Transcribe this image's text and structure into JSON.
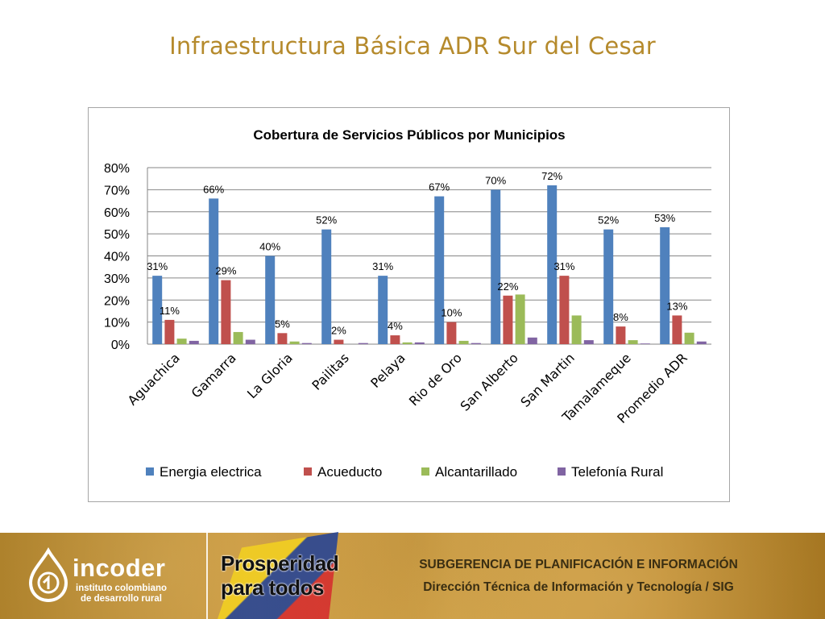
{
  "slide": {
    "title": "Infraestructura Básica ADR Sur del Cesar"
  },
  "chart_data": {
    "type": "bar",
    "title": "Cobertura de Servicios Públicos por Municipios",
    "categories": [
      "Aguachica",
      "Gamarra",
      "La Gloria",
      "Pailitas",
      "Pelaya",
      "Rio de Oro",
      "San Alberto",
      "San Martin",
      "Tamalameque",
      "Promedio ADR"
    ],
    "series": [
      {
        "name": "Energia electrica",
        "color": "#4f81bd",
        "values": [
          0.31,
          0.66,
          0.4,
          0.52,
          0.31,
          0.67,
          0.7,
          0.72,
          0.52,
          0.53
        ],
        "labels": [
          "31%",
          "66%",
          "40%",
          "52%",
          "31%",
          "67%",
          "70%",
          "72%",
          "52%",
          "53%"
        ]
      },
      {
        "name": "Acueducto",
        "color": "#c0504d",
        "values": [
          0.11,
          0.29,
          0.05,
          0.02,
          0.04,
          0.1,
          0.22,
          0.31,
          0.08,
          0.13
        ],
        "labels": [
          "11%",
          "29%",
          "5%",
          "2%",
          "4%",
          "10%",
          "22%",
          "31%",
          "8%",
          "13%"
        ]
      },
      {
        "name": "Alcantarillado",
        "color": "#9bbb59",
        "values": [
          0.025,
          0.055,
          0.012,
          0.0,
          0.008,
          0.015,
          0.225,
          0.13,
          0.018,
          0.052
        ]
      },
      {
        "name": "Telefonía Rural",
        "color": "#8064a2",
        "values": [
          0.015,
          0.02,
          0.005,
          0.005,
          0.008,
          0.005,
          0.03,
          0.018,
          0.003,
          0.012
        ]
      }
    ],
    "ylim": [
      0,
      0.8
    ],
    "yticks": [
      "0%",
      "10%",
      "20%",
      "30%",
      "40%",
      "50%",
      "60%",
      "70%",
      "80%"
    ],
    "grid": true,
    "legend": "bottom"
  },
  "footer": {
    "org_name": "incoder",
    "org_sub1": "instituto colombiano",
    "org_sub2": "de desarrollo rural",
    "slogan_line1": "Prosperidad",
    "slogan_line2": "para todos",
    "subgerencia": "SUBGERENCIA DE PLANIFICACIÓN E INFORMACIÓN",
    "direccion": "Dirección Técnica de Información y Tecnología / SIG"
  }
}
